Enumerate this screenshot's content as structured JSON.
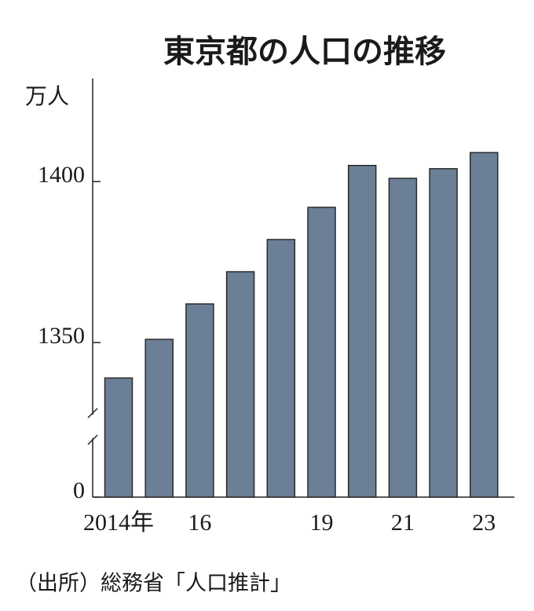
{
  "chart_data": {
    "type": "bar",
    "title": "東京都の人口の推移",
    "y_unit": "万人",
    "categories": [
      "2014年",
      null,
      "16",
      null,
      null,
      "19",
      null,
      "21",
      null,
      "23"
    ],
    "values": [
      1339,
      1351,
      1362,
      1372,
      1382,
      1392,
      1405,
      1401,
      1404,
      1409
    ],
    "color": "#6b7f96",
    "ylim": [
      1302,
      1432
    ],
    "yticks": [
      0,
      1350,
      1400
    ],
    "axis_break": true,
    "grid": false,
    "source": "（出所）総務省「人口推計」"
  }
}
